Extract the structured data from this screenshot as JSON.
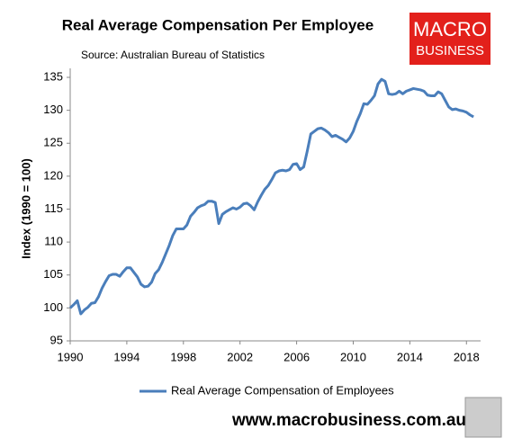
{
  "chart_data": {
    "type": "line",
    "title": "Real Average Compensation Per Employee",
    "subtitle": "Source: Australian Bureau of Statistics",
    "ylabel": "Index (1990 = 100)",
    "logo": [
      "MACRO",
      "BUSINESS"
    ],
    "footer": "www.macrobusiness.com.au",
    "x": [
      1990,
      1990.25,
      1990.5,
      1990.75,
      1991,
      1991.25,
      1991.5,
      1991.75,
      1992,
      1992.25,
      1992.5,
      1992.75,
      1993,
      1993.25,
      1993.5,
      1993.75,
      1994,
      1994.25,
      1994.5,
      1994.75,
      1995,
      1995.25,
      1995.5,
      1995.75,
      1996,
      1996.25,
      1996.5,
      1996.75,
      1997,
      1997.25,
      1997.5,
      1997.75,
      1998,
      1998.25,
      1998.5,
      1998.75,
      1999,
      1999.25,
      1999.5,
      1999.75,
      2000,
      2000.25,
      2000.5,
      2000.75,
      2001,
      2001.25,
      2001.5,
      2001.75,
      2002,
      2002.25,
      2002.5,
      2002.75,
      2003,
      2003.25,
      2003.5,
      2003.75,
      2004,
      2004.25,
      2004.5,
      2004.75,
      2005,
      2005.25,
      2005.5,
      2005.75,
      2006,
      2006.25,
      2006.5,
      2006.75,
      2007,
      2007.25,
      2007.5,
      2007.75,
      2008,
      2008.25,
      2008.5,
      2008.75,
      2009,
      2009.25,
      2009.5,
      2009.75,
      2010,
      2010.25,
      2010.5,
      2010.75,
      2011,
      2011.25,
      2011.5,
      2011.75,
      2012,
      2012.25,
      2012.5,
      2012.75,
      2013,
      2013.25,
      2013.5,
      2013.75,
      2014,
      2014.25,
      2014.5,
      2014.75,
      2015,
      2015.25,
      2015.5,
      2015.75,
      2016,
      2016.25,
      2016.5,
      2016.75,
      2017,
      2017.25,
      2017.5,
      2017.75,
      2018,
      2018.25,
      2018.5
    ],
    "series": [
      {
        "name": "Real Average Compensation of Employees",
        "color": "#4a7ebb",
        "values": [
          100.0,
          100.5,
          101.1,
          99.1,
          99.7,
          100.1,
          100.7,
          100.8,
          101.7,
          103.0,
          104.0,
          104.9,
          105.1,
          105.1,
          104.8,
          105.5,
          106.1,
          106.1,
          105.4,
          104.7,
          103.6,
          103.2,
          103.3,
          103.9,
          105.2,
          105.8,
          106.9,
          108.2,
          109.5,
          111.0,
          112.0,
          112.0,
          112.0,
          112.6,
          113.9,
          114.5,
          115.2,
          115.5,
          115.7,
          116.2,
          116.2,
          116.0,
          112.8,
          114.2,
          114.6,
          114.9,
          115.2,
          115.0,
          115.3,
          115.8,
          115.9,
          115.5,
          114.9,
          116.1,
          117.1,
          118.0,
          118.6,
          119.5,
          120.5,
          120.8,
          120.9,
          120.8,
          121.0,
          121.8,
          121.9,
          121.0,
          121.4,
          123.8,
          126.4,
          126.8,
          127.2,
          127.3,
          127.0,
          126.6,
          126.0,
          126.2,
          125.9,
          125.6,
          125.2,
          125.8,
          126.8,
          128.3,
          129.5,
          131.0,
          130.9,
          131.5,
          132.2,
          134.0,
          134.7,
          134.4,
          132.5,
          132.4,
          132.5,
          132.9,
          132.5,
          132.9,
          133.1,
          133.3,
          133.2,
          133.1,
          132.9,
          132.3,
          132.2,
          132.2,
          132.8,
          132.5,
          131.5,
          130.5,
          130.1,
          130.2,
          130.0,
          129.9,
          129.7,
          129.3,
          129.0
        ]
      }
    ],
    "xlim": [
      1990,
      2019
    ],
    "xticks": [
      1990,
      1994,
      1998,
      2002,
      2006,
      2010,
      2014,
      2018
    ],
    "ylim": [
      95,
      135
    ],
    "yticks": [
      95,
      100,
      105,
      110,
      115,
      120,
      125,
      130,
      135
    ],
    "legend": "bottom"
  }
}
